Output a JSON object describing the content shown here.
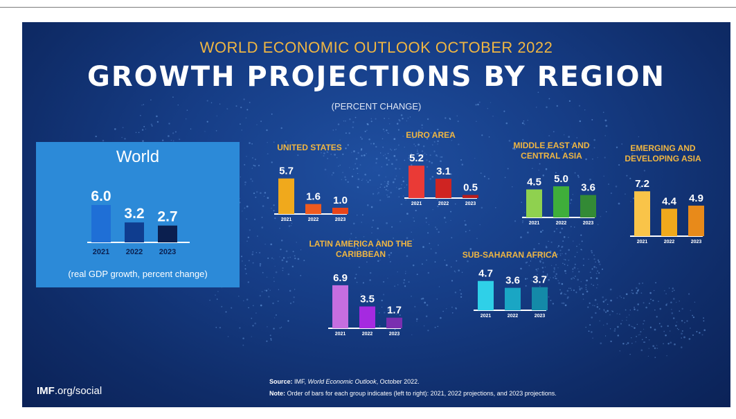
{
  "header": {
    "supertitle": "WORLD ECONOMIC OUTLOOK OCTOBER 2022",
    "title": "GROWTH PROJECTIONS BY REGION",
    "subtitle": "(PERCENT CHANGE)"
  },
  "world_box": {
    "title": "World",
    "note": "(real GDP growth, percent change)"
  },
  "footer": {
    "source_label": "Source:",
    "source_prefix": "IMF, ",
    "source_pub": "World Economic Outlook",
    "source_suffix": ", October 2022.",
    "note_label": "Note:",
    "note_text": "Order of bars for each group indicates (left to right): 2021, 2022 projections, and 2023 projections.",
    "brand_bold": "IMF",
    "brand_rest": ".org/social"
  },
  "chart_data": [
    {
      "type": "bar",
      "title": "World",
      "categories": [
        "2021",
        "2022",
        "2023"
      ],
      "values": [
        6.0,
        3.2,
        2.7
      ],
      "colors": [
        "#1f6fd6",
        "#0f3d8f",
        "#0b1f4f"
      ]
    },
    {
      "type": "bar",
      "title": "UNITED STATES",
      "categories": [
        "2021",
        "2022",
        "2023"
      ],
      "values": [
        5.7,
        1.6,
        1.0
      ],
      "colors": [
        "#f0a91c",
        "#ee5a1f",
        "#e8441a"
      ]
    },
    {
      "type": "bar",
      "title": "EURO AREA",
      "categories": [
        "2021",
        "2022",
        "2023"
      ],
      "values": [
        5.2,
        3.1,
        0.5
      ],
      "colors": [
        "#ea3a36",
        "#cf2422",
        "#b81c1c"
      ]
    },
    {
      "type": "bar",
      "title": "MIDDLE EAST AND CENTRAL ASIA",
      "categories": [
        "2021",
        "2022",
        "2023"
      ],
      "values": [
        4.5,
        5.0,
        3.6
      ],
      "colors": [
        "#8fd14f",
        "#3fae3a",
        "#338a35"
      ]
    },
    {
      "type": "bar",
      "title": "EMERGING AND DEVELOPING ASIA",
      "categories": [
        "2021",
        "2022",
        "2023"
      ],
      "values": [
        7.2,
        4.4,
        4.9
      ],
      "colors": [
        "#f9c449",
        "#f0a91c",
        "#e88a1a"
      ]
    },
    {
      "type": "bar",
      "title": "LATIN AMERICA AND THE CARIBBEAN",
      "categories": [
        "2021",
        "2022",
        "2023"
      ],
      "values": [
        6.9,
        3.5,
        1.7
      ],
      "colors": [
        "#c56ee0",
        "#a52ae0",
        "#7a2fb0"
      ]
    },
    {
      "type": "bar",
      "title": "SUB-SAHARAN AFRICA",
      "categories": [
        "2021",
        "2022",
        "2023"
      ],
      "values": [
        4.7,
        3.6,
        3.7
      ],
      "colors": [
        "#2fd0e8",
        "#1aa6c4",
        "#148aa8"
      ]
    }
  ]
}
